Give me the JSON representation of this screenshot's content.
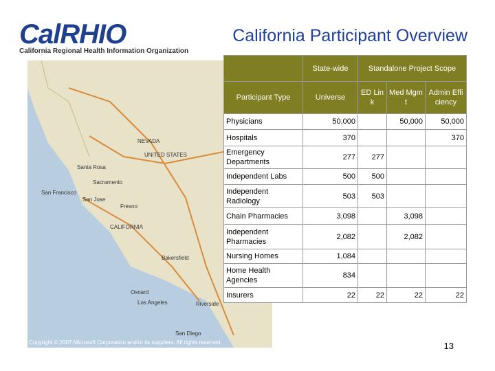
{
  "logo": {
    "name": "CalRHIO",
    "subtitle": "California Regional Health Information Organization"
  },
  "title": "California Participant Overview",
  "map": {
    "labels": [
      "NEVADA",
      "UNITED STATES",
      "CALIFORNIA",
      "Sacramento",
      "Santa Rosa",
      "San Francisco",
      "San Jose",
      "Fresno",
      "Bakersfield",
      "Los Angeles",
      "Riverside",
      "San Diego",
      "Oxnard"
    ],
    "copyright": "Copyright © 2007 Microsoft Corporation and/or its suppliers. All rights reserved."
  },
  "table": {
    "group_headers": [
      "State-wide",
      "Standalone Project Scope"
    ],
    "header": [
      "Participant Type",
      "Universe",
      "ED Link",
      "Med Mgmt",
      "Admin Efficiency"
    ],
    "rows": [
      [
        "Physicians",
        "50,000",
        null,
        "50,000",
        "50,000"
      ],
      [
        "Hospitals",
        "370",
        null,
        null,
        "370"
      ],
      [
        "Emergency Departments",
        "277",
        "277",
        null,
        null
      ],
      [
        "Independent Labs",
        "500",
        "500",
        null,
        null
      ],
      [
        "Independent Radiology",
        "503",
        "503",
        null,
        null
      ],
      [
        "Chain Pharmacies",
        "3,098",
        null,
        "3,098",
        null
      ],
      [
        "Independent Pharmacies",
        "2,082",
        null,
        "2,082",
        null
      ],
      [
        "Nursing Homes",
        "1,084",
        null,
        null,
        null
      ],
      [
        "Home Health Agencies",
        "834",
        null,
        null,
        null
      ],
      [
        "Insurers",
        "22",
        "22",
        "22",
        "22"
      ]
    ]
  },
  "page_number": "13"
}
